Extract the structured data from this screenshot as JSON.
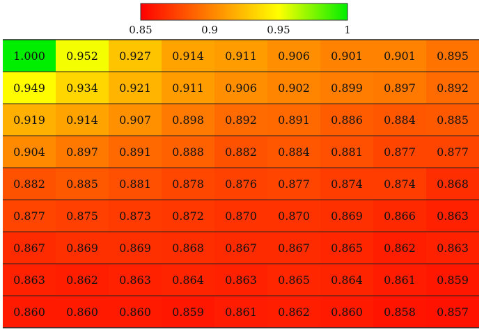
{
  "chart_data": {
    "type": "heatmap",
    "title": "",
    "xlabel": "",
    "ylabel": "",
    "colorbar": {
      "min": 0.85,
      "max": 1.0,
      "ticks": [
        0.85,
        0.9,
        0.95,
        1.0
      ],
      "tick_labels": [
        "0.85",
        "0.9",
        "0.95",
        "1"
      ],
      "placement": "top",
      "colors": [
        "#ff0000",
        "#ffff00",
        "#00ee00"
      ]
    },
    "grid": true,
    "rows": [
      [
        "1.000",
        "0.952",
        "0.927",
        "0.914",
        "0.911",
        "0.906",
        "0.901",
        "0.901",
        "0.895"
      ],
      [
        "0.949",
        "0.934",
        "0.921",
        "0.911",
        "0.906",
        "0.902",
        "0.899",
        "0.897",
        "0.892"
      ],
      [
        "0.919",
        "0.914",
        "0.907",
        "0.898",
        "0.892",
        "0.891",
        "0.886",
        "0.884",
        "0.885"
      ],
      [
        "0.904",
        "0.897",
        "0.891",
        "0.888",
        "0.882",
        "0.884",
        "0.881",
        "0.877",
        "0.877"
      ],
      [
        "0.882",
        "0.885",
        "0.881",
        "0.878",
        "0.876",
        "0.877",
        "0.874",
        "0.874",
        "0.868"
      ],
      [
        "0.877",
        "0.875",
        "0.873",
        "0.872",
        "0.870",
        "0.870",
        "0.869",
        "0.866",
        "0.863"
      ],
      [
        "0.867",
        "0.869",
        "0.869",
        "0.868",
        "0.867",
        "0.867",
        "0.865",
        "0.862",
        "0.863"
      ],
      [
        "0.863",
        "0.862",
        "0.863",
        "0.864",
        "0.863",
        "0.865",
        "0.864",
        "0.861",
        "0.859"
      ],
      [
        "0.860",
        "0.860",
        "0.860",
        "0.859",
        "0.861",
        "0.862",
        "0.860",
        "0.858",
        "0.857"
      ]
    ]
  }
}
